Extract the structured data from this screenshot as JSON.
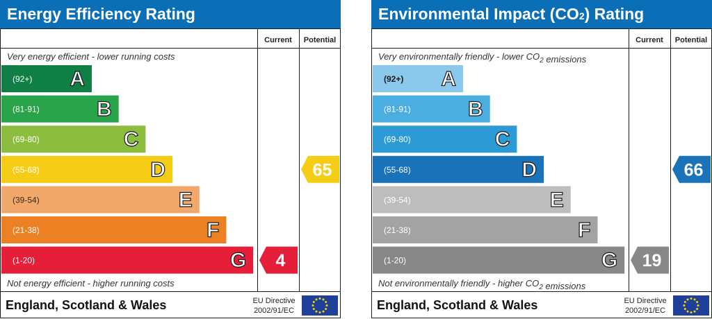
{
  "chart_data": [
    {
      "type": "bar",
      "title": "Energy Efficiency Rating",
      "columns": [
        "Current",
        "Potential"
      ],
      "top_caption": "Very energy efficient - lower running costs",
      "bottom_caption": "Not energy efficient - higher running costs",
      "bands": [
        {
          "letter": "A",
          "range": "(92+)",
          "color": "#0f7f45"
        },
        {
          "letter": "B",
          "range": "(81-91)",
          "color": "#2aa44a"
        },
        {
          "letter": "C",
          "range": "(69-80)",
          "color": "#8dbd3f"
        },
        {
          "letter": "D",
          "range": "(55-68)",
          "color": "#f5cd17"
        },
        {
          "letter": "E",
          "range": "(39-54)",
          "color": "#f1a86a"
        },
        {
          "letter": "F",
          "range": "(21-38)",
          "color": "#ec8124"
        },
        {
          "letter": "G",
          "range": "(1-20)",
          "color": "#e51e3a"
        }
      ],
      "current": {
        "value": 4,
        "band": "G",
        "color": "#e51e3a"
      },
      "potential": {
        "value": 65,
        "band": "D",
        "color": "#f5cd17"
      },
      "footer_region": "England, Scotland & Wales",
      "footer_directive_line1": "EU Directive",
      "footer_directive_line2": "2002/91/EC"
    },
    {
      "type": "bar",
      "title": "Environmental Impact (CO2) Rating",
      "columns": [
        "Current",
        "Potential"
      ],
      "top_caption": "Very environmentally friendly - lower CO2 emissions",
      "bottom_caption": "Not environmentally friendly - higher CO2 emissions",
      "bands": [
        {
          "letter": "A",
          "range": "(92+)",
          "color": "#8ac8ec"
        },
        {
          "letter": "B",
          "range": "(81-91)",
          "color": "#4aaee0"
        },
        {
          "letter": "C",
          "range": "(69-80)",
          "color": "#2b9ad5"
        },
        {
          "letter": "D",
          "range": "(55-68)",
          "color": "#1a72b9"
        },
        {
          "letter": "E",
          "range": "(39-54)",
          "color": "#bdbdbd"
        },
        {
          "letter": "F",
          "range": "(21-38)",
          "color": "#a3a3a3"
        },
        {
          "letter": "G",
          "range": "(1-20)",
          "color": "#888888"
        }
      ],
      "current": {
        "value": 19,
        "band": "G",
        "color": "#888888"
      },
      "potential": {
        "value": 66,
        "band": "D",
        "color": "#1a72b9"
      },
      "footer_region": "England, Scotland & Wales",
      "footer_directive_line1": "EU Directive",
      "footer_directive_line2": "2002/91/EC"
    }
  ]
}
